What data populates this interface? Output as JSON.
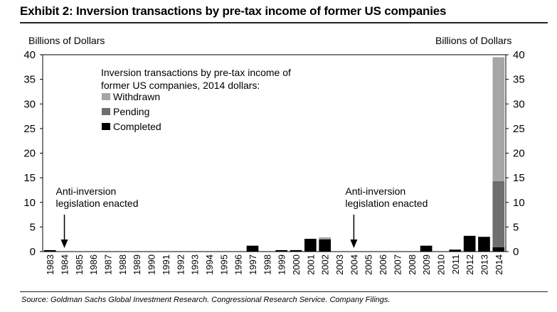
{
  "title": "Exhibit 2: Inversion transactions by pre-tax income of former US companies",
  "source": "Source: Goldman Sachs Global Investment Research. Congressional Research Service. Company Filings.",
  "colors": {
    "withdrawn": "#a6a6a6",
    "pending": "#6e6e6e",
    "completed": "#000000"
  },
  "chart_data": {
    "type": "bar",
    "stacked": true,
    "ylabel_left": "Billions of Dollars",
    "ylabel_right": "Billions of Dollars",
    "ylim": [
      0,
      40
    ],
    "yticks": [
      0,
      5,
      10,
      15,
      20,
      25,
      30,
      35,
      40
    ],
    "legend_title": "Inversion transactions by pre-tax income of former US companies, 2014 dollars:",
    "legend_position": "top-left",
    "categories": [
      "1983",
      "1984",
      "1985",
      "1986",
      "1987",
      "1988",
      "1989",
      "1990",
      "1991",
      "1992",
      "1993",
      "1994",
      "1995",
      "1996",
      "1997",
      "1998",
      "1999",
      "2000",
      "2001",
      "2002",
      "2003",
      "2004",
      "2005",
      "2006",
      "2007",
      "2008",
      "2009",
      "2010",
      "2011",
      "2012",
      "2013",
      "2014"
    ],
    "series": [
      {
        "name": "Completed",
        "key": "completed",
        "values": [
          0.3,
          0,
          0,
          0,
          0,
          0,
          0,
          0,
          0,
          0,
          0,
          0,
          0,
          0,
          1.2,
          0,
          0.3,
          0.3,
          2.6,
          2.5,
          0,
          0,
          0,
          0,
          0,
          0,
          1.2,
          0,
          0.4,
          3.2,
          3.0,
          0.9
        ]
      },
      {
        "name": "Pending",
        "key": "pending",
        "values": [
          0,
          0,
          0,
          0,
          0,
          0,
          0,
          0,
          0,
          0,
          0,
          0,
          0,
          0,
          0,
          0,
          0,
          0,
          0,
          0,
          0,
          0,
          0,
          0,
          0,
          0,
          0,
          0,
          0,
          0,
          0,
          13.4
        ]
      },
      {
        "name": "Withdrawn",
        "key": "withdrawn",
        "values": [
          0,
          0,
          0,
          0,
          0,
          0,
          0,
          0,
          0,
          0,
          0,
          0,
          0,
          0,
          0,
          0,
          0,
          0,
          0,
          0.4,
          0,
          0,
          0,
          0,
          0,
          0,
          0,
          0,
          0,
          0,
          0,
          25.2
        ]
      }
    ],
    "annotations": [
      {
        "key": "1984",
        "text_lines": [
          "Anti-inversion",
          "legislation enacted"
        ]
      },
      {
        "key": "2004",
        "text_lines": [
          "Anti-inversion",
          "legislation enacted"
        ]
      }
    ]
  }
}
